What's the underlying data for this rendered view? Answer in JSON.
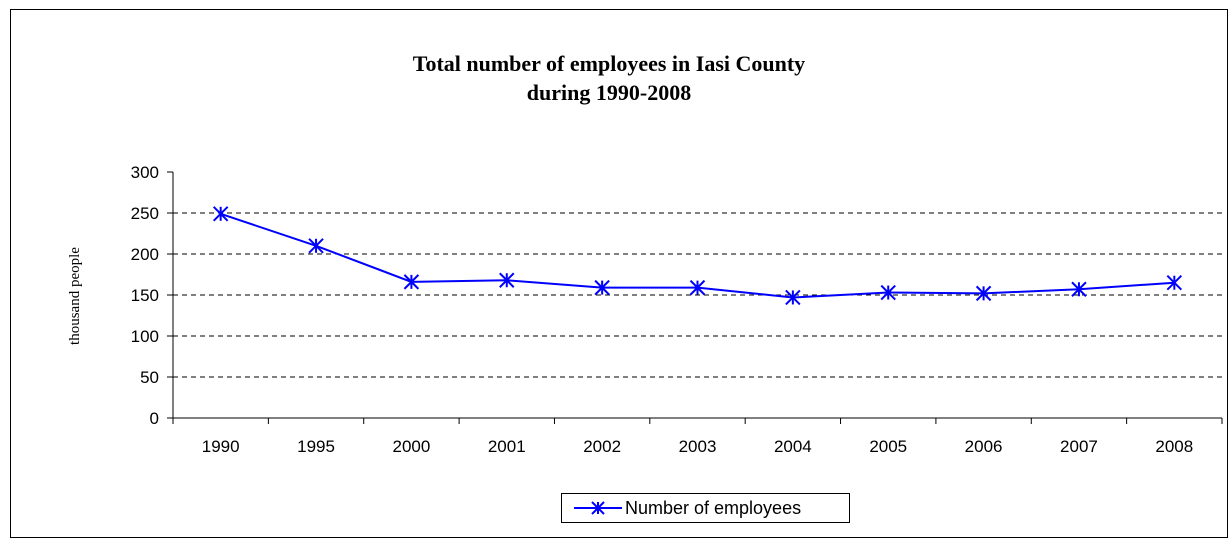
{
  "chart_data": {
    "type": "line",
    "title_lines": [
      "Total number of employees in Iasi County",
      "during 1990-2008"
    ],
    "xlabel": "",
    "ylabel": "thousand people",
    "categories": [
      "1990",
      "1995",
      "2000",
      "2001",
      "2002",
      "2003",
      "2004",
      "2005",
      "2006",
      "2007",
      "2008"
    ],
    "series": [
      {
        "name": "Number of employees",
        "values": [
          249,
          210,
          166,
          168,
          159,
          159,
          147,
          153,
          152,
          157,
          165
        ],
        "color": "#0000ff",
        "marker": "asterisk"
      }
    ],
    "ylim": [
      0,
      300
    ],
    "yticks": [
      0,
      50,
      100,
      150,
      200,
      250,
      300
    ],
    "grid": "horizontal-dashed",
    "legend_position": "bottom"
  }
}
